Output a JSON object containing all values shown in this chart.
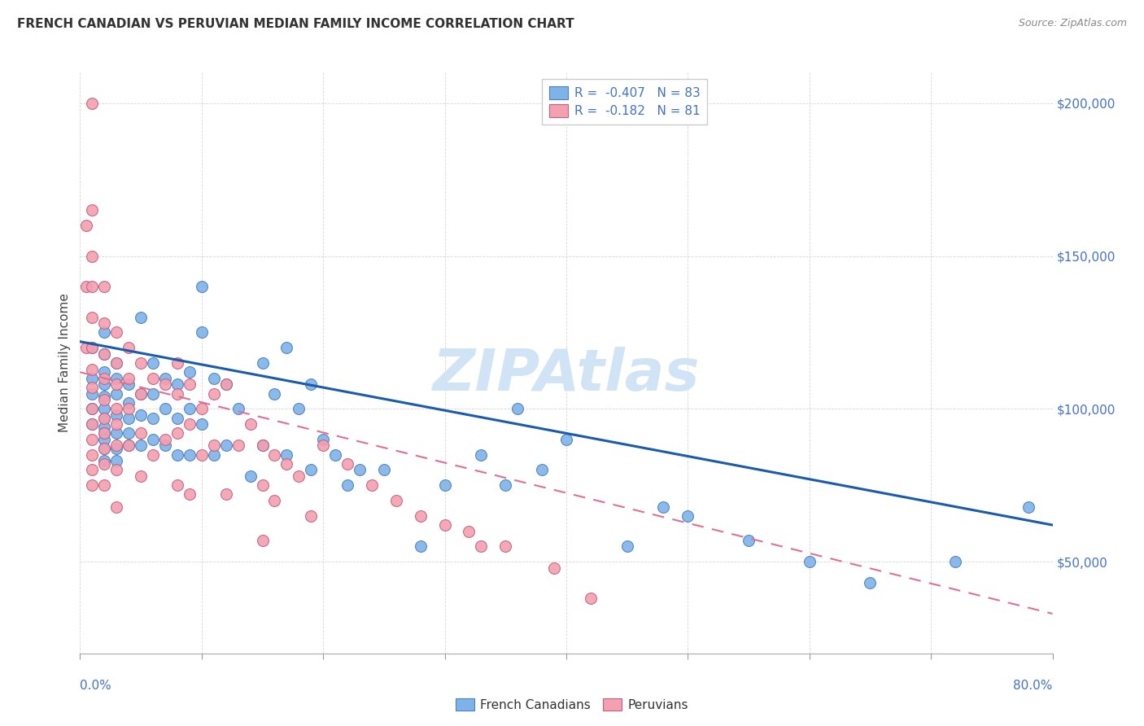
{
  "title": "FRENCH CANADIAN VS PERUVIAN MEDIAN FAMILY INCOME CORRELATION CHART",
  "source_text": "Source: ZipAtlas.com",
  "ylabel": "Median Family Income",
  "xmin": 0.0,
  "xmax": 0.8,
  "ymin": 20000,
  "ymax": 210000,
  "yticks": [
    50000,
    100000,
    150000,
    200000
  ],
  "ytick_labels": [
    "$50,000",
    "$100,000",
    "$150,000",
    "$200,000"
  ],
  "legend_r_blue": "R =  -0.407",
  "legend_n_blue": "N = 83",
  "legend_r_pink": "R =  -0.182",
  "legend_n_pink": "N = 81",
  "blue_color": "#7EB3E8",
  "pink_color": "#F4A0B0",
  "blue_line_color": "#1A5BAD",
  "pink_line_color": "#E07090",
  "blue_edge_color": "#4A80C0",
  "pink_edge_color": "#C06080",
  "watermark": "ZIPAtlas",
  "watermark_color": "#D0E4F5",
  "blue_line_y0": 122000,
  "blue_line_y1": 62000,
  "pink_line_y0": 112000,
  "pink_line_y1": 33000,
  "blue_scatter_x": [
    0.01,
    0.01,
    0.01,
    0.01,
    0.01,
    0.02,
    0.02,
    0.02,
    0.02,
    0.02,
    0.02,
    0.02,
    0.02,
    0.02,
    0.02,
    0.02,
    0.02,
    0.03,
    0.03,
    0.03,
    0.03,
    0.03,
    0.03,
    0.03,
    0.04,
    0.04,
    0.04,
    0.04,
    0.04,
    0.05,
    0.05,
    0.05,
    0.05,
    0.06,
    0.06,
    0.06,
    0.06,
    0.07,
    0.07,
    0.07,
    0.08,
    0.08,
    0.08,
    0.09,
    0.09,
    0.09,
    0.1,
    0.1,
    0.1,
    0.11,
    0.11,
    0.12,
    0.12,
    0.13,
    0.14,
    0.15,
    0.15,
    0.16,
    0.17,
    0.17,
    0.18,
    0.19,
    0.19,
    0.2,
    0.21,
    0.22,
    0.23,
    0.25,
    0.28,
    0.3,
    0.33,
    0.35,
    0.36,
    0.38,
    0.4,
    0.45,
    0.48,
    0.5,
    0.55,
    0.6,
    0.65,
    0.72,
    0.78
  ],
  "blue_scatter_y": [
    120000,
    110000,
    105000,
    100000,
    95000,
    125000,
    118000,
    112000,
    108000,
    104000,
    100000,
    97000,
    94000,
    92000,
    90000,
    87000,
    83000,
    115000,
    110000,
    105000,
    98000,
    92000,
    87000,
    83000,
    108000,
    102000,
    97000,
    92000,
    88000,
    130000,
    105000,
    98000,
    88000,
    115000,
    105000,
    97000,
    90000,
    110000,
    100000,
    88000,
    108000,
    97000,
    85000,
    112000,
    100000,
    85000,
    140000,
    125000,
    95000,
    110000,
    85000,
    108000,
    88000,
    100000,
    78000,
    115000,
    88000,
    105000,
    120000,
    85000,
    100000,
    108000,
    80000,
    90000,
    85000,
    75000,
    80000,
    80000,
    55000,
    75000,
    85000,
    75000,
    100000,
    80000,
    90000,
    55000,
    68000,
    65000,
    57000,
    50000,
    43000,
    50000,
    68000
  ],
  "pink_scatter_x": [
    0.005,
    0.005,
    0.005,
    0.01,
    0.01,
    0.01,
    0.01,
    0.01,
    0.01,
    0.01,
    0.01,
    0.01,
    0.01,
    0.01,
    0.01,
    0.01,
    0.01,
    0.02,
    0.02,
    0.02,
    0.02,
    0.02,
    0.02,
    0.02,
    0.02,
    0.02,
    0.02,
    0.03,
    0.03,
    0.03,
    0.03,
    0.03,
    0.03,
    0.03,
    0.03,
    0.04,
    0.04,
    0.04,
    0.04,
    0.05,
    0.05,
    0.05,
    0.05,
    0.06,
    0.06,
    0.07,
    0.07,
    0.08,
    0.08,
    0.08,
    0.08,
    0.09,
    0.09,
    0.09,
    0.1,
    0.1,
    0.11,
    0.11,
    0.12,
    0.12,
    0.13,
    0.14,
    0.15,
    0.15,
    0.15,
    0.16,
    0.16,
    0.17,
    0.18,
    0.19,
    0.2,
    0.22,
    0.24,
    0.26,
    0.28,
    0.3,
    0.32,
    0.33,
    0.35,
    0.39,
    0.42
  ],
  "pink_scatter_y": [
    160000,
    140000,
    120000,
    200000,
    165000,
    150000,
    140000,
    130000,
    120000,
    113000,
    107000,
    100000,
    95000,
    90000,
    85000,
    80000,
    75000,
    140000,
    128000,
    118000,
    110000,
    103000,
    97000,
    92000,
    87000,
    82000,
    75000,
    125000,
    115000,
    108000,
    100000,
    95000,
    88000,
    80000,
    68000,
    120000,
    110000,
    100000,
    88000,
    115000,
    105000,
    92000,
    78000,
    110000,
    85000,
    108000,
    90000,
    115000,
    105000,
    92000,
    75000,
    108000,
    95000,
    72000,
    100000,
    85000,
    105000,
    88000,
    108000,
    72000,
    88000,
    95000,
    88000,
    75000,
    57000,
    85000,
    70000,
    82000,
    78000,
    65000,
    88000,
    82000,
    75000,
    70000,
    65000,
    62000,
    60000,
    55000,
    55000,
    48000,
    38000
  ]
}
